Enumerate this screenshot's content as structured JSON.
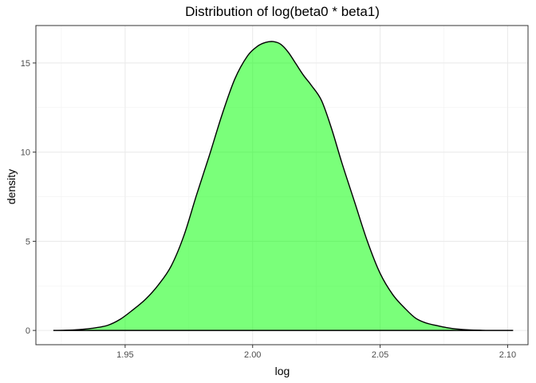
{
  "chart_data": {
    "type": "area",
    "title": "Distribution of log(beta0 * beta1)",
    "xlabel": "log",
    "ylabel": "density",
    "xlim": [
      1.915,
      2.108
    ],
    "ylim": [
      -0.8,
      17.1
    ],
    "x_ticks": [
      1.95,
      2.0,
      2.05,
      2.1
    ],
    "x_tick_labels": [
      "1.95",
      "2.00",
      "2.05",
      "2.10"
    ],
    "y_ticks": [
      0,
      5,
      10,
      15
    ],
    "y_tick_labels": [
      "0",
      "5",
      "10",
      "15"
    ],
    "grid": true,
    "fill_color": "#00ff00",
    "fill_opacity": 0.52,
    "line_color": "#000000",
    "series": [
      {
        "x": [
          1.922,
          1.93,
          1.937,
          1.943,
          1.948,
          1.953,
          1.958,
          1.963,
          1.968,
          1.973,
          1.978,
          1.983,
          1.988,
          1.993,
          1.998,
          2.002,
          2.005,
          2.008,
          2.011,
          2.014,
          2.017,
          2.02,
          2.023,
          2.027,
          2.031,
          2.035,
          2.04,
          2.045,
          2.05,
          2.055,
          2.06,
          2.064,
          2.068,
          2.072,
          2.076,
          2.08,
          2.085,
          2.09,
          2.095,
          2.102
        ],
        "y": [
          0.0,
          0.03,
          0.12,
          0.28,
          0.62,
          1.15,
          1.75,
          2.55,
          3.6,
          5.3,
          7.6,
          9.8,
          12.1,
          14.1,
          15.4,
          15.95,
          16.15,
          16.2,
          16.05,
          15.6,
          14.95,
          14.3,
          13.75,
          12.9,
          11.3,
          9.4,
          7.2,
          5.0,
          3.2,
          2.0,
          1.2,
          0.68,
          0.42,
          0.28,
          0.16,
          0.08,
          0.03,
          0.01,
          0.0,
          0.0
        ]
      }
    ]
  }
}
